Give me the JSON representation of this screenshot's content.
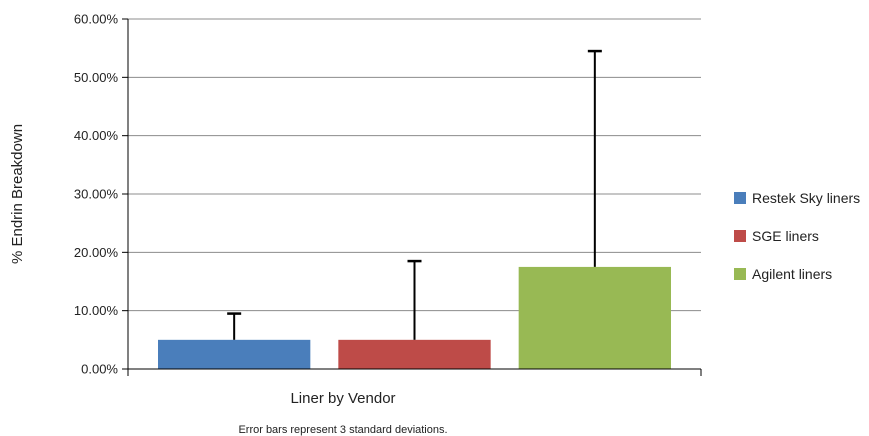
{
  "chart_data": {
    "type": "bar",
    "categories": [
      "Liner by Vendor"
    ],
    "series": [
      {
        "name": "Restek Sky liners",
        "value": 5.0,
        "error": 4.5,
        "color": "#4a7ebb"
      },
      {
        "name": "SGE liners",
        "value": 5.0,
        "error": 13.5,
        "color": "#be4b48"
      },
      {
        "name": "Agilent liners",
        "value": 17.5,
        "error": 37.0,
        "color": "#98b954"
      }
    ],
    "ylim": [
      0,
      60
    ],
    "yticks": [
      0,
      10,
      20,
      30,
      40,
      50,
      60
    ],
    "ytick_labels": [
      "0.00%",
      "10.00%",
      "20.00%",
      "30.00%",
      "40.00%",
      "50.00%",
      "60.00%"
    ],
    "xlabel": "Liner by Vendor",
    "ylabel": "% Endrin Breakdown",
    "note": "Error bars represent 3 standard deviations.",
    "grid": true,
    "legend_position": "right"
  }
}
